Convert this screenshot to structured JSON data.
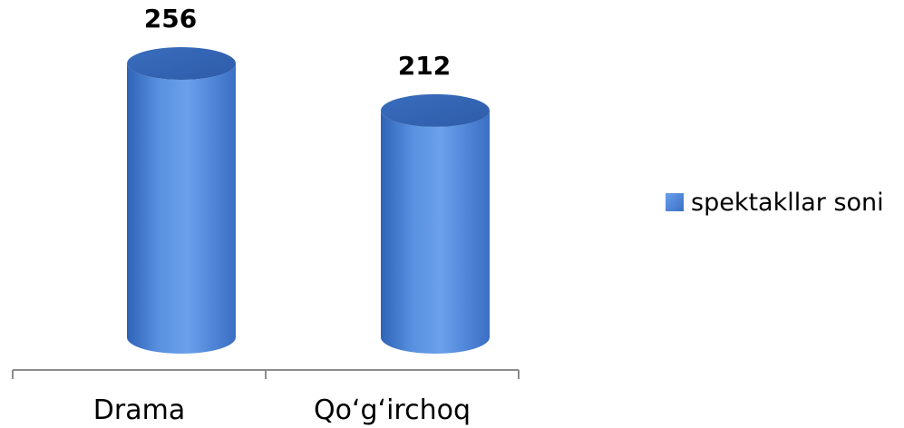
{
  "chart_data": {
    "type": "bar",
    "shape": "cylinder",
    "categories": [
      "Drama",
      "Qo‘g‘irchoq"
    ],
    "series": [
      {
        "name": "spektakllar soni",
        "values": [
          256,
          212
        ],
        "color": "#4f86d8"
      }
    ],
    "data_labels": [
      "256",
      "212"
    ],
    "legend": {
      "position": "right",
      "label": "spektakllar soni"
    },
    "ylim": [
      0,
      256
    ],
    "grid": false,
    "title": "",
    "xlabel": "",
    "ylabel": ""
  }
}
